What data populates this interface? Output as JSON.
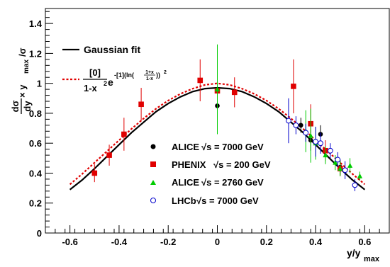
{
  "chart_data": {
    "type": "scatter",
    "xlabel": "y/y",
    "xlabel_sub": "max",
    "ylabel": {
      "frac_num": "dσ",
      "frac_den": "dy",
      "times": "× y",
      "sub": "max",
      "tail": "/σ"
    },
    "xlim": [
      -0.7,
      0.7
    ],
    "ylim": [
      0,
      1.5
    ],
    "x_ticks": [
      -0.6,
      -0.4,
      -0.2,
      0,
      0.2,
      0.4,
      0.6
    ],
    "x_tick_labels": [
      "-0.6",
      "-0.4",
      "-0.2",
      "0",
      "0.2",
      "0.4",
      "0.6"
    ],
    "y_ticks": [
      0,
      0.2,
      0.4,
      0.6,
      0.8,
      1,
      1.2,
      1.4
    ],
    "y_tick_labels": [
      "0",
      "0.2",
      "0.4",
      "0.6",
      "0.8",
      "1",
      "1.2",
      "1.4"
    ],
    "grid": false,
    "fits": [
      {
        "name": "Gaussian fit",
        "style": "solid",
        "color": "#000000",
        "x": [
          -0.6,
          -0.55,
          -0.5,
          -0.45,
          -0.4,
          -0.35,
          -0.3,
          -0.25,
          -0.2,
          -0.15,
          -0.1,
          -0.05,
          0,
          0.05,
          0.1,
          0.15,
          0.2,
          0.25,
          0.3,
          0.35,
          0.4,
          0.45,
          0.5,
          0.55,
          0.6
        ],
        "y": [
          0.29,
          0.355,
          0.43,
          0.51,
          0.59,
          0.67,
          0.74,
          0.81,
          0.865,
          0.91,
          0.945,
          0.965,
          0.97,
          0.965,
          0.945,
          0.91,
          0.865,
          0.81,
          0.74,
          0.67,
          0.59,
          0.51,
          0.43,
          0.355,
          0.29
        ]
      },
      {
        "name_label": "[0]",
        "name_den": "1-x",
        "name_exp": "-[1](ln(",
        "name_exp_frac_num": "1+x",
        "name_exp_frac_den": "1-x",
        "name_exp_tail": "))",
        "style": "dashed",
        "color": "#e00000",
        "x": [
          -0.6,
          -0.55,
          -0.5,
          -0.45,
          -0.4,
          -0.35,
          -0.3,
          -0.25,
          -0.2,
          -0.15,
          -0.1,
          -0.05,
          0,
          0.05,
          0.1,
          0.15,
          0.2,
          0.25,
          0.3,
          0.35,
          0.4,
          0.45,
          0.5,
          0.55,
          0.6
        ],
        "y": [
          0.325,
          0.395,
          0.47,
          0.545,
          0.62,
          0.695,
          0.765,
          0.83,
          0.885,
          0.93,
          0.965,
          0.99,
          1.0,
          0.99,
          0.965,
          0.93,
          0.885,
          0.83,
          0.765,
          0.695,
          0.62,
          0.545,
          0.47,
          0.395,
          0.325
        ]
      }
    ],
    "series": [
      {
        "name": "ALICE",
        "energy": "√s = 7000 GeV",
        "marker": "filled-circle",
        "color": "#000000",
        "x": [
          0.0,
          0.34,
          0.42,
          0.38,
          0.5
        ],
        "y": [
          0.85,
          0.72,
          0.66,
          0.62,
          0.44
        ],
        "err": [
          0.12,
          0.05,
          0.06,
          0.07,
          0.05
        ]
      },
      {
        "name": "PHENIX",
        "energy": "√s = 200 GeV",
        "marker": "filled-square",
        "color": "#e00000",
        "x": [
          -0.5,
          -0.44,
          -0.38,
          -0.31,
          -0.07,
          0.0,
          0.07,
          0.31,
          0.38,
          0.44,
          0.5
        ],
        "y": [
          0.4,
          0.52,
          0.66,
          0.86,
          1.02,
          0.95,
          0.94,
          0.98,
          0.73,
          0.55,
          0.43
        ],
        "err": [
          0.06,
          0.07,
          0.11,
          0.11,
          0.14,
          0.25,
          0.1,
          0.18,
          0.13,
          0.07,
          0.05
        ]
      },
      {
        "name": "ALICE",
        "energy": "√s = 2760 GeV",
        "marker": "filled-triangle",
        "color": "#00cc00",
        "x": [
          0.0,
          0.36,
          0.38,
          0.4,
          0.44,
          0.48,
          0.5,
          0.54,
          0.58
        ],
        "y": [
          0.96,
          0.68,
          0.65,
          0.6,
          0.52,
          0.47,
          0.43,
          0.45,
          0.38
        ],
        "err": [
          0.3,
          0.14,
          0.18,
          0.11,
          0.06,
          0.05,
          0.05,
          0.05,
          0.03
        ]
      },
      {
        "name": "LHCb",
        "energy": "√s = 7000 GeV",
        "marker": "open-circle",
        "color": "#0000cc",
        "x": [
          0.29,
          0.32,
          0.36,
          0.4,
          0.42,
          0.46,
          0.49,
          0.52,
          0.56
        ],
        "y": [
          0.75,
          0.72,
          0.67,
          0.61,
          0.6,
          0.55,
          0.49,
          0.42,
          0.32
        ],
        "err": [
          0.15,
          0.06,
          0.06,
          0.1,
          0.07,
          0.05,
          0.05,
          0.06,
          0.04
        ]
      }
    ]
  }
}
